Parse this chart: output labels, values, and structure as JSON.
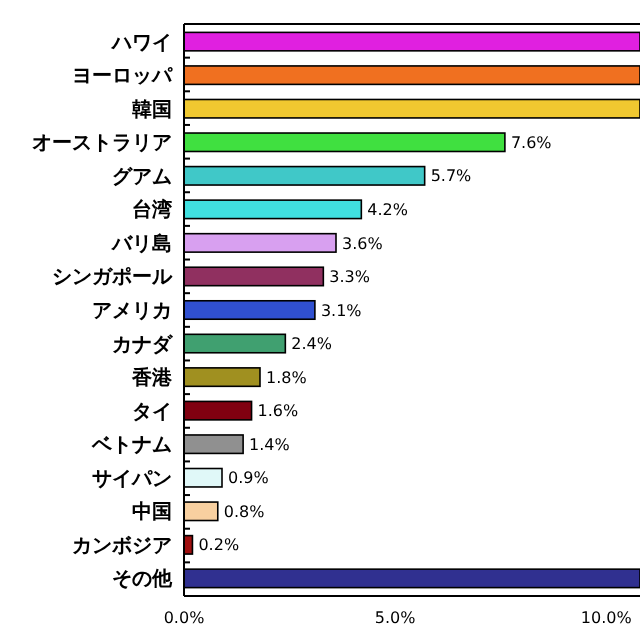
{
  "chart_data": {
    "type": "bar",
    "orientation": "horizontal",
    "categories": [
      "ハワイ",
      "ヨーロッパ",
      "韓国",
      "オーストラリア",
      "グアム",
      "台湾",
      "バリ島",
      "シンガポール",
      "アメリカ",
      "カナダ",
      "香港",
      "タイ",
      "ベトナム",
      "サイパン",
      "中国",
      "カンボジア",
      "その他"
    ],
    "values": [
      10.8,
      10.8,
      10.8,
      7.6,
      5.7,
      4.2,
      3.6,
      3.3,
      3.1,
      2.4,
      1.8,
      1.6,
      1.4,
      0.9,
      0.8,
      0.2,
      10.8
    ],
    "value_labels": [
      null,
      null,
      null,
      "7.6%",
      "5.7%",
      "4.2%",
      "3.6%",
      "3.3%",
      "3.1%",
      "2.4%",
      "1.8%",
      "1.6%",
      "1.4%",
      "0.9%",
      "0.8%",
      "0.2%",
      null
    ],
    "colors": [
      "#e020e0",
      "#f07020",
      "#f0c830",
      "#40e040",
      "#40c8c8",
      "#40e0e0",
      "#d8a0f0",
      "#903060",
      "#3050d0",
      "#40a070",
      "#a09020",
      "#800010",
      "#909090",
      "#e0f8f8",
      "#f8d0a0",
      "#a01010",
      "#303090"
    ],
    "xlim": [
      0,
      10.8
    ],
    "xticks": [
      {
        "value": 0,
        "label": "0.0%"
      },
      {
        "value": 5,
        "label": "5.0%"
      },
      {
        "value": 10,
        "label": "10.0%"
      }
    ],
    "grid": false
  }
}
